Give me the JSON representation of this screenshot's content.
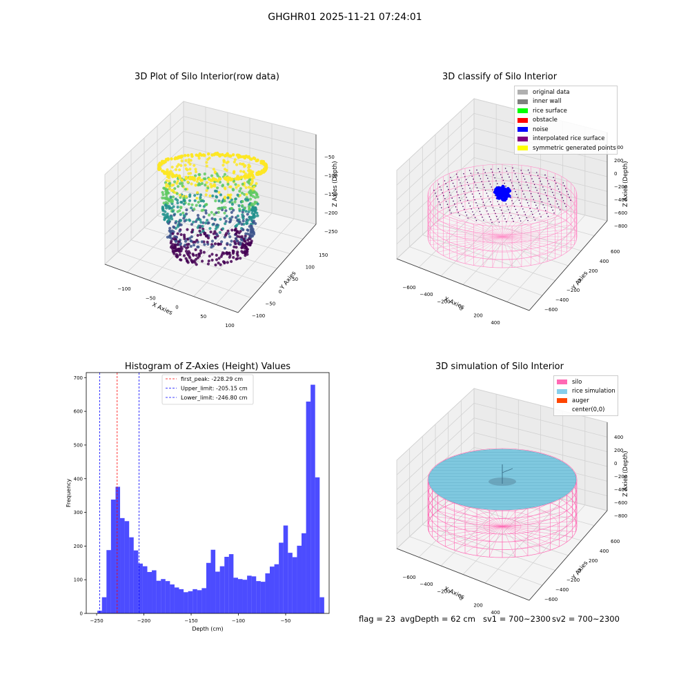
{
  "suptitle": "GHGHR01 2025-11-21 07:24:01",
  "panels": {
    "raw": {
      "title": "3D Plot of Silo Interior(row data)",
      "xlabel": "X Axies",
      "ylabel": "Y Axies",
      "zlabel": "Z Axies (Depth)",
      "x_ticks": [
        "−100",
        "−50",
        "0",
        "50",
        "100"
      ],
      "y_ticks": [
        "−100",
        "−50",
        "0",
        "50",
        "100",
        "150"
      ],
      "z_ticks": [
        "−50",
        "−100",
        "−150",
        "−200",
        "−250"
      ],
      "colormap": "viridis"
    },
    "classify": {
      "title": "3D classify of Silo Interior",
      "xlabel": "X Axies",
      "ylabel": "Y Axies",
      "zlabel": "Z Axies (Depth)",
      "x_ticks": [
        "−600",
        "−400",
        "−200",
        "0",
        "200",
        "400",
        "600"
      ],
      "y_ticks": [
        "−600",
        "−400",
        "−200",
        "0",
        "200",
        "400",
        "600"
      ],
      "z_ticks": [
        "400",
        "200",
        "0",
        "−200",
        "−400",
        "−600",
        "−800"
      ],
      "legend": [
        {
          "label": "original data",
          "color": "#b0b0b0"
        },
        {
          "label": "inner wall",
          "color": "#808080"
        },
        {
          "label": "rice surface",
          "color": "#00ff00"
        },
        {
          "label": "obstacle",
          "color": "#ff0000"
        },
        {
          "label": "noise",
          "color": "#0000ff"
        },
        {
          "label": "interpolated rice surface",
          "color": "#800080"
        },
        {
          "label": "symmetric generated points",
          "color": "#ffff00"
        }
      ]
    },
    "simulation": {
      "title": "3D simulation of Silo Interior",
      "xlabel": "X Axies",
      "ylabel": "Y Axies",
      "zlabel": "Z Axies (Depth)",
      "x_ticks": [
        "−600",
        "−400",
        "−200",
        "0",
        "200",
        "400",
        "600"
      ],
      "y_ticks": [
        "−600",
        "−400",
        "−200",
        "0",
        "200",
        "400",
        "600"
      ],
      "z_ticks": [
        "400",
        "200",
        "0",
        "−200",
        "−400",
        "−600",
        "−800"
      ],
      "legend": [
        {
          "label": "silo",
          "color": "#ff69b4"
        },
        {
          "label": "rice simulation",
          "color": "#87ceeb"
        },
        {
          "label": "auger",
          "color": "#ff4500"
        },
        {
          "label": "center(0,0)",
          "color": ""
        }
      ]
    }
  },
  "chart_data": {
    "type": "bar",
    "title": "Histogram of Z-Axies (Height) Values",
    "xlabel": "Depth (cm)",
    "ylabel": "Frequency",
    "xlim": [
      -261,
      -4
    ],
    "ylim": [
      0,
      715
    ],
    "bar_color": "#0000ff",
    "bar_opacity": 0.7,
    "x_ticks": [
      -250,
      -200,
      -150,
      -100,
      -50
    ],
    "y_ticks": [
      0,
      100,
      200,
      300,
      400,
      500,
      600,
      700
    ],
    "bin_edges_start": -249.2,
    "bin_width": 4.8,
    "values": [
      8,
      48,
      188,
      338,
      376,
      283,
      274,
      226,
      187,
      148,
      140,
      123,
      128,
      97,
      102,
      96,
      86,
      77,
      72,
      63,
      66,
      72,
      69,
      75,
      150,
      189,
      124,
      140,
      168,
      176,
      106,
      102,
      100,
      112,
      110,
      96,
      94,
      119,
      139,
      146,
      210,
      261,
      180,
      167,
      201,
      238,
      629,
      679,
      404,
      48
    ],
    "vlines": [
      {
        "label": "first_peak: -228.29 cm",
        "x": -228.29,
        "color": "#ff0000"
      },
      {
        "label": "Upper_limit: -205.15 cm",
        "x": -205.15,
        "color": "#0000ff"
      },
      {
        "label": "Lower_limit: -246.80 cm",
        "x": -246.8,
        "color": "#0000ff"
      }
    ]
  },
  "footer": {
    "flag": "flag = 23",
    "avg": "avgDepth = 62 cm",
    "sv1": "sv1 = 700~2300",
    "sv2": "sv2 = 700~2300"
  }
}
